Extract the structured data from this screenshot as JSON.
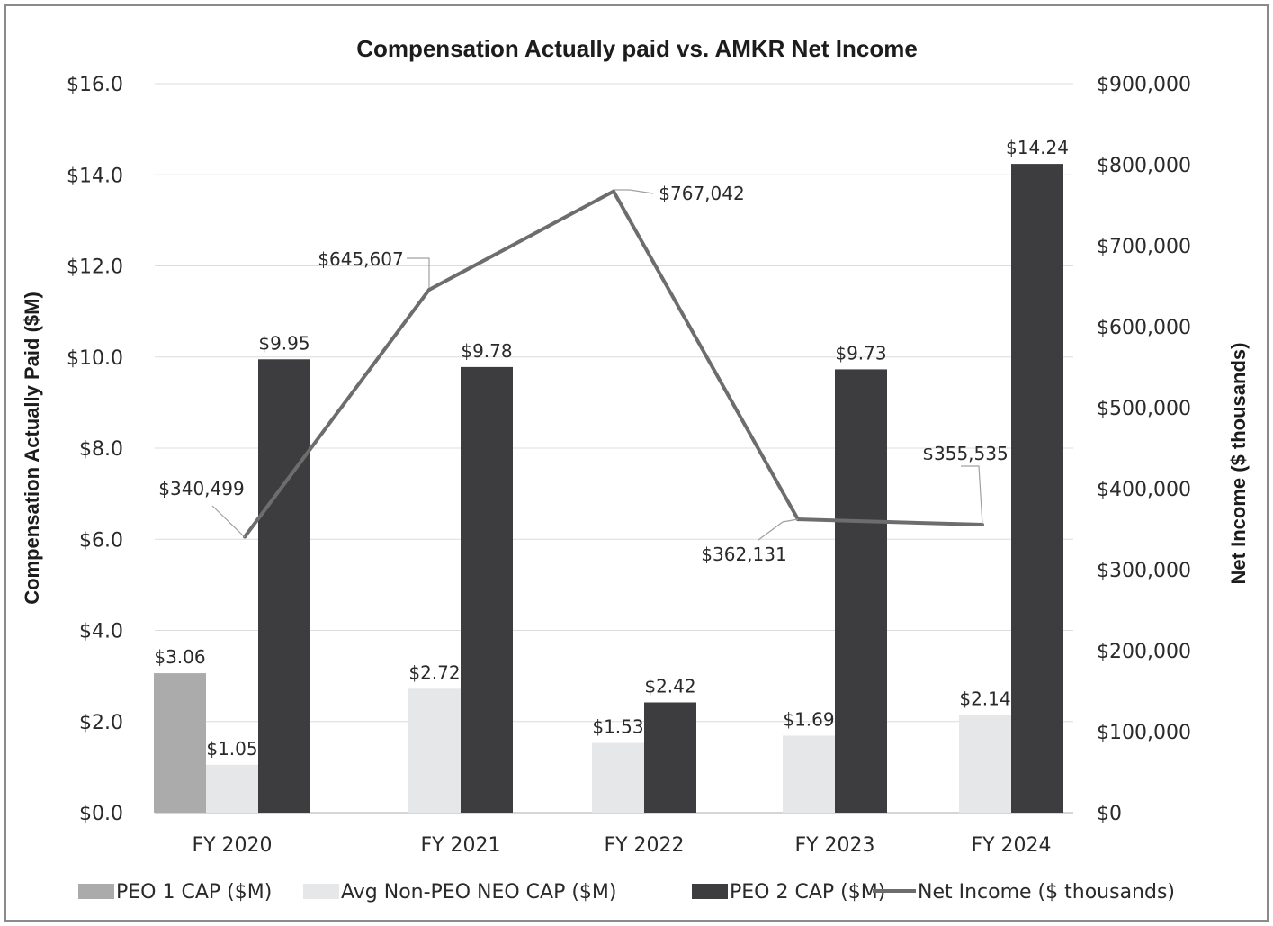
{
  "chart_data": {
    "type": "bar",
    "title": "Compensation Actually paid vs. AMKR Net Income",
    "categories": [
      "FY 2020",
      "FY 2021",
      "FY 2022",
      "FY 2023",
      "FY 2024"
    ],
    "ylabel": "Compensation Actually Paid ($M)",
    "y2label": "Net Income ($ thousands)",
    "ylim": [
      0,
      16
    ],
    "y2lim": [
      0,
      900000
    ],
    "yticks": [
      "$0.0",
      "$2.0",
      "$4.0",
      "$6.0",
      "$8.0",
      "$10.0",
      "$12.0",
      "$14.0",
      "$16.0"
    ],
    "y2ticks": [
      "$0",
      "$100,000",
      "$200,000",
      "$300,000",
      "$400,000",
      "$500,000",
      "$600,000",
      "$700,000",
      "$800,000",
      "$900,000"
    ],
    "grid": true,
    "legend_position": "bottom",
    "series": [
      {
        "name": "PEO 1 CAP ($M)",
        "kind": "bar",
        "color": "#ababab",
        "values": [
          3.06,
          null,
          null,
          null,
          null
        ],
        "labels": [
          "$3.06",
          null,
          null,
          null,
          null
        ]
      },
      {
        "name": "Avg Non-PEO NEO CAP ($M)",
        "kind": "bar",
        "color": "#e6e7e8",
        "values": [
          1.05,
          2.72,
          1.53,
          1.69,
          2.14
        ],
        "labels": [
          "$1.05",
          "$2.72",
          "$1.53",
          "$1.69",
          "$2.14"
        ]
      },
      {
        "name": "PEO 2 CAP ($M)",
        "kind": "bar",
        "color": "#3d3d3f",
        "values": [
          9.95,
          9.78,
          2.42,
          9.73,
          14.24
        ],
        "labels": [
          "$9.95",
          "$9.78",
          "$2.42",
          "$9.73",
          "$14.24"
        ]
      },
      {
        "name": "Net Income ($ thousands)",
        "kind": "line",
        "axis": "right",
        "color": "#6d6d6d",
        "values": [
          340499,
          645607,
          767042,
          362131,
          355535
        ],
        "labels": [
          "$340,499",
          "$645,607",
          "$767,042",
          "$362,131",
          "$355,535"
        ]
      }
    ]
  }
}
